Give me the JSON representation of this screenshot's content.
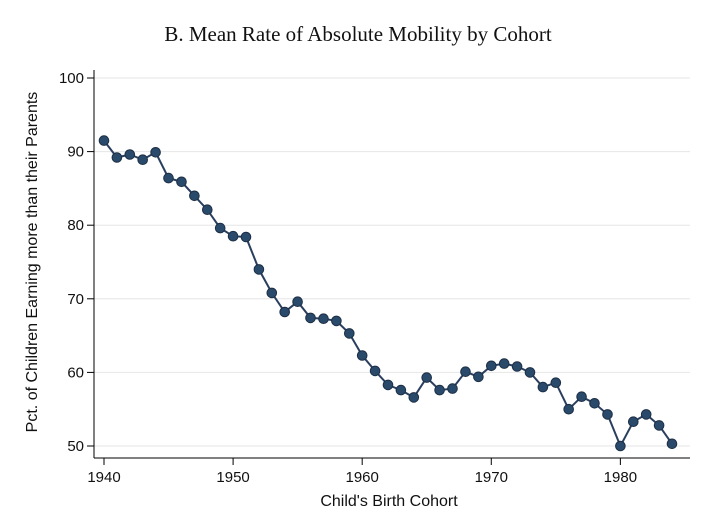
{
  "chart_data": {
    "type": "line",
    "title": "B. Mean Rate of Absolute Mobility by Cohort",
    "xlabel": "Child's Birth Cohort",
    "ylabel": "Pct. of Children Earning more than their Parents",
    "xlim": [
      1940,
      1984
    ],
    "ylim": [
      50,
      100
    ],
    "xticks": [
      1940,
      1950,
      1960,
      1970,
      1980
    ],
    "yticks": [
      50,
      60,
      70,
      80,
      90,
      100
    ],
    "grid": "horizontal",
    "colors": {
      "line": "#2a3f5f",
      "marker": "#2a4a6b",
      "grid": "#e6e6e6",
      "axis": "#000000"
    },
    "series": [
      {
        "x": [
          1940,
          1941,
          1942,
          1943,
          1944,
          1945,
          1946,
          1947,
          1948,
          1949,
          1950,
          1951,
          1952,
          1953,
          1954,
          1955,
          1956,
          1957,
          1958,
          1959,
          1960,
          1961,
          1962,
          1963,
          1964,
          1965,
          1966,
          1967,
          1968,
          1969,
          1970,
          1971,
          1972,
          1973,
          1974,
          1975,
          1976,
          1977,
          1978,
          1979,
          1980,
          1981,
          1982,
          1983,
          1984
        ],
        "y": [
          91.5,
          89.2,
          89.6,
          88.9,
          89.9,
          86.4,
          85.9,
          84.0,
          82.1,
          79.6,
          78.5,
          78.4,
          74.0,
          70.8,
          68.2,
          69.6,
          67.4,
          67.3,
          67.0,
          65.3,
          62.3,
          60.2,
          58.3,
          57.6,
          56.6,
          59.3,
          57.6,
          57.8,
          60.1,
          59.4,
          60.9,
          61.2,
          60.8,
          60.0,
          58.0,
          58.6,
          55.0,
          56.7,
          55.8,
          54.3,
          50.0,
          53.3,
          54.3,
          52.8,
          50.3
        ]
      }
    ]
  }
}
